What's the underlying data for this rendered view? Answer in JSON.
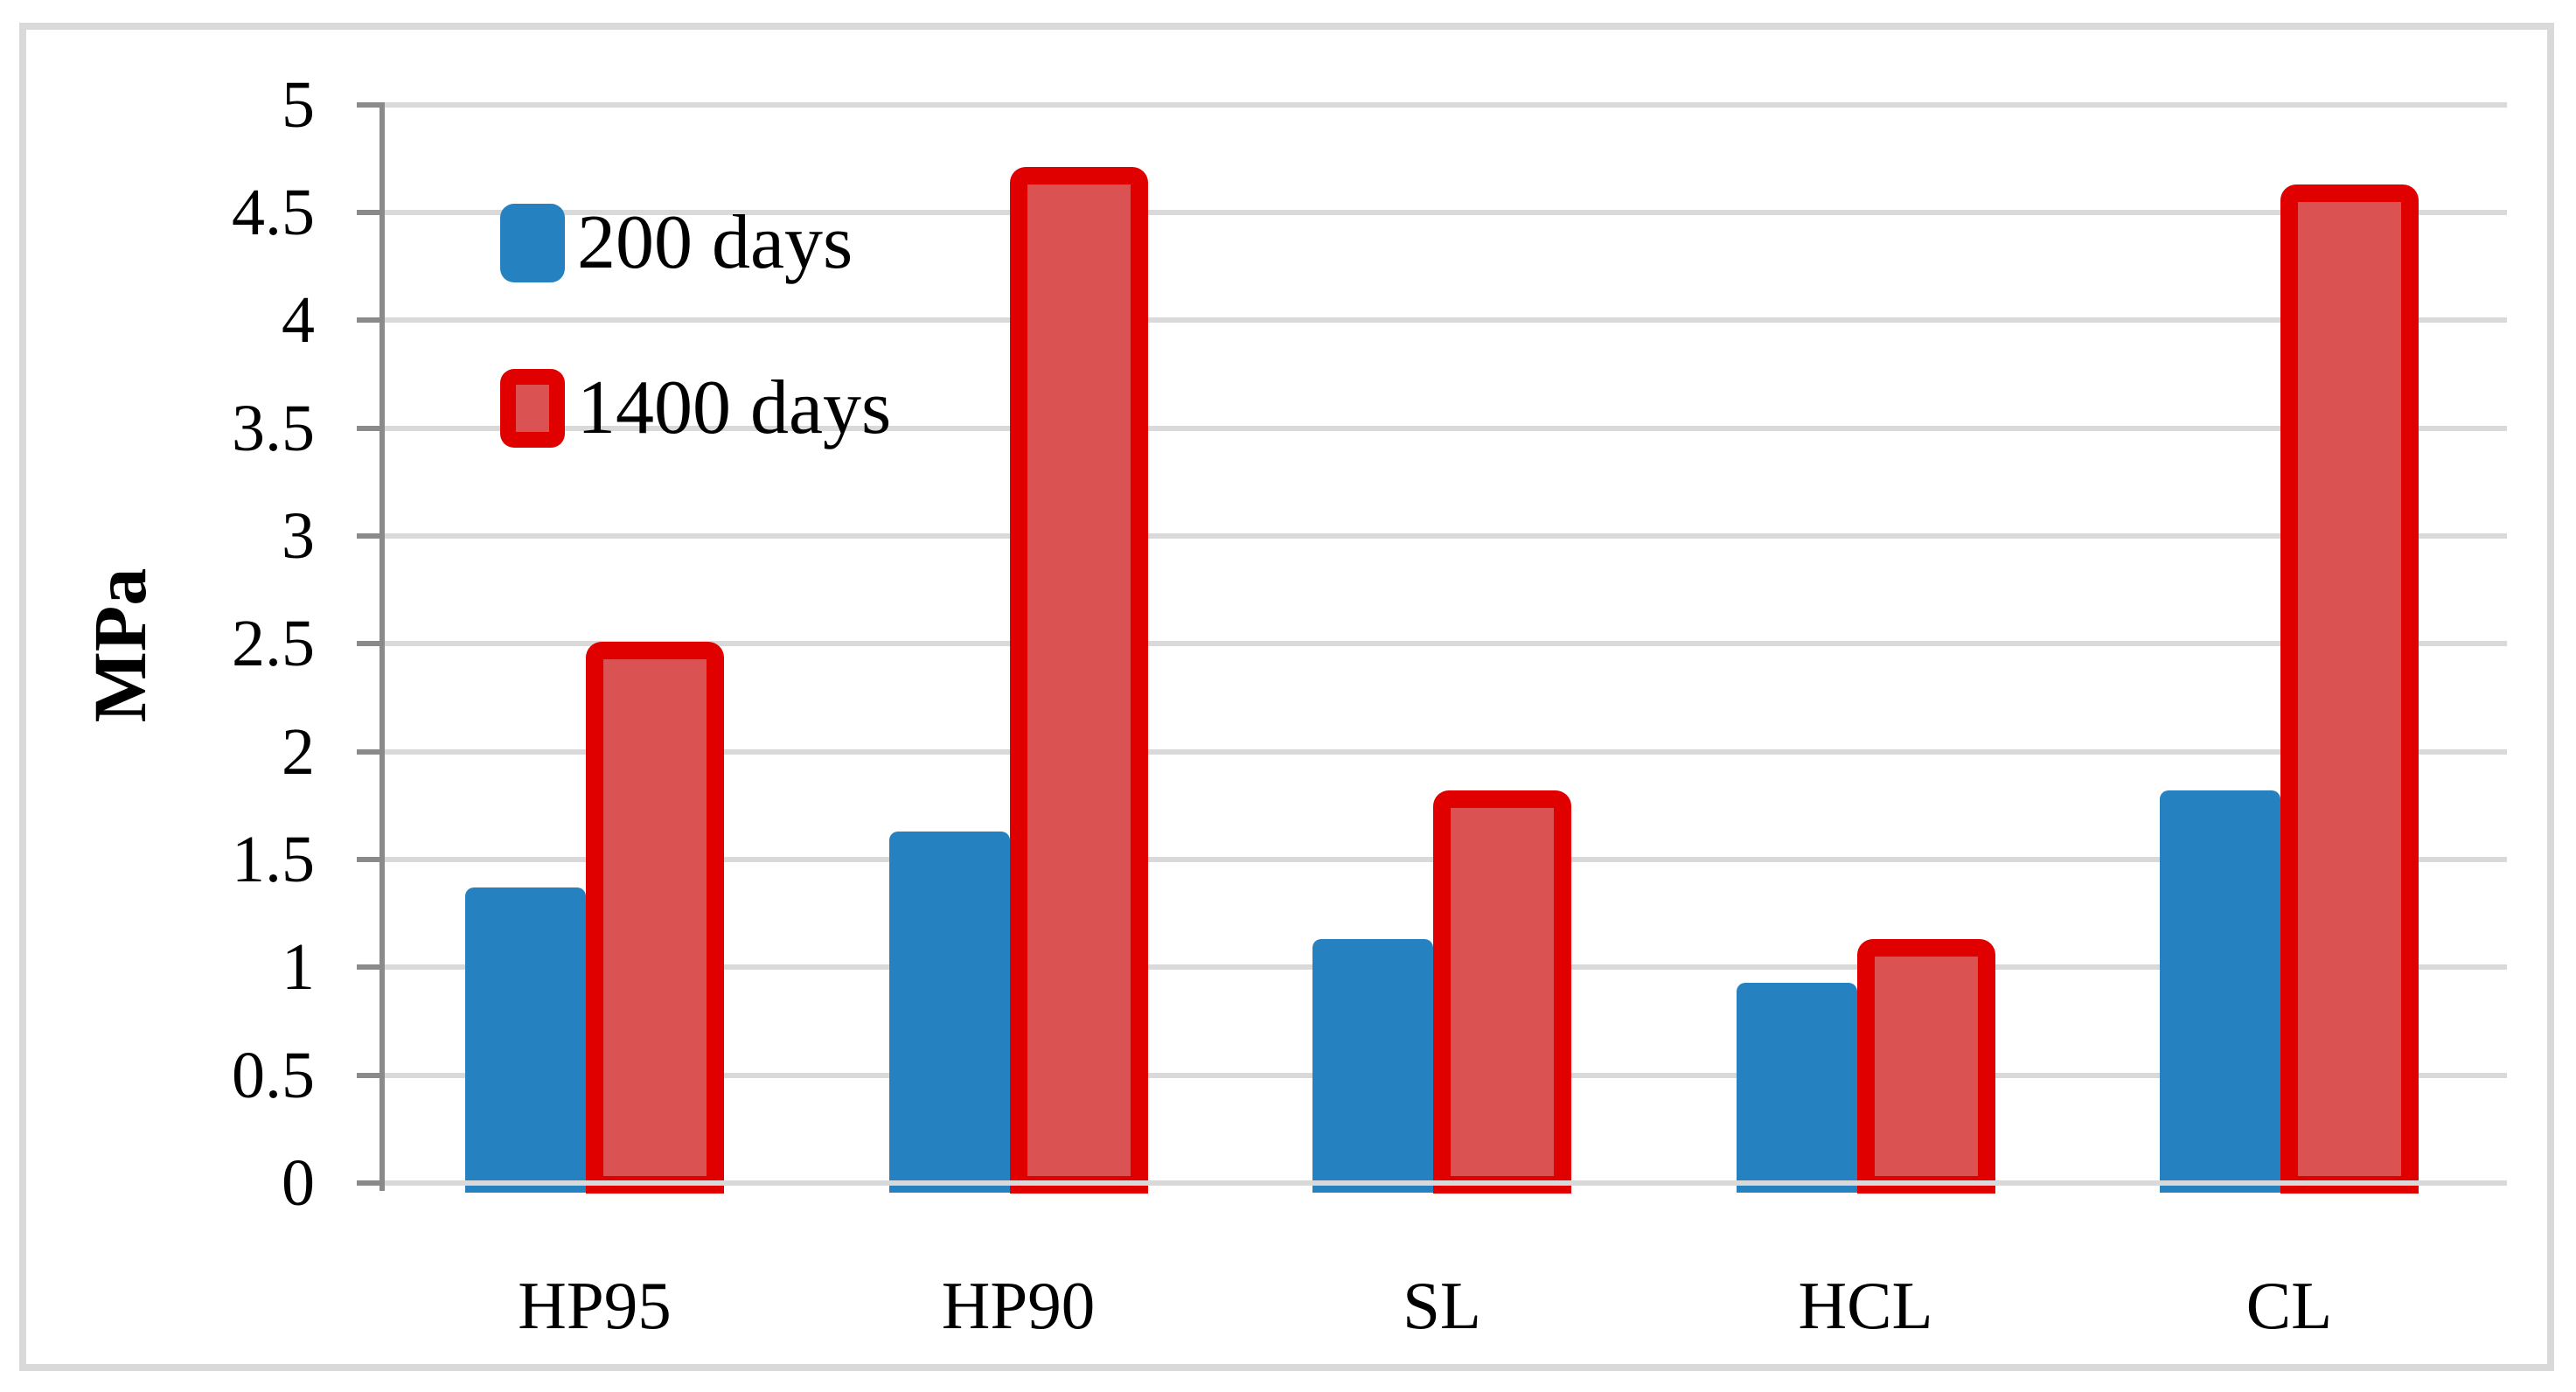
{
  "chart_data": {
    "type": "bar",
    "title": "",
    "ylabel": "MPa",
    "xlabel": "",
    "categories": [
      "HP95",
      "HP90",
      "SL",
      "HCL",
      "CL"
    ],
    "series": [
      {
        "name": "200 days",
        "color": "#2581C0",
        "values": [
          1.37,
          1.63,
          1.13,
          0.93,
          1.82
        ]
      },
      {
        "name": "1400 days",
        "color": "#DB5252",
        "border_color": "#E00000",
        "values": [
          2.47,
          4.67,
          1.78,
          1.09,
          4.59
        ]
      }
    ],
    "ylim": [
      0,
      5
    ],
    "ytick_step": 0.5,
    "ytick_labels": [
      "0",
      "0.5",
      "1",
      "1.5",
      "2",
      "2.5",
      "3",
      "3.5",
      "4",
      "4.5",
      "5"
    ],
    "grid": true,
    "legend_position": "top-left"
  },
  "colors": {
    "blue_series": "#2581C0",
    "red_fill": "#DB5252",
    "red_border": "#E00000",
    "gridline": "#D9D9D9",
    "axis": "#8A8A8A",
    "figure_border": "#D9D9D9",
    "text": "#000000",
    "background": "#FFFFFF"
  }
}
